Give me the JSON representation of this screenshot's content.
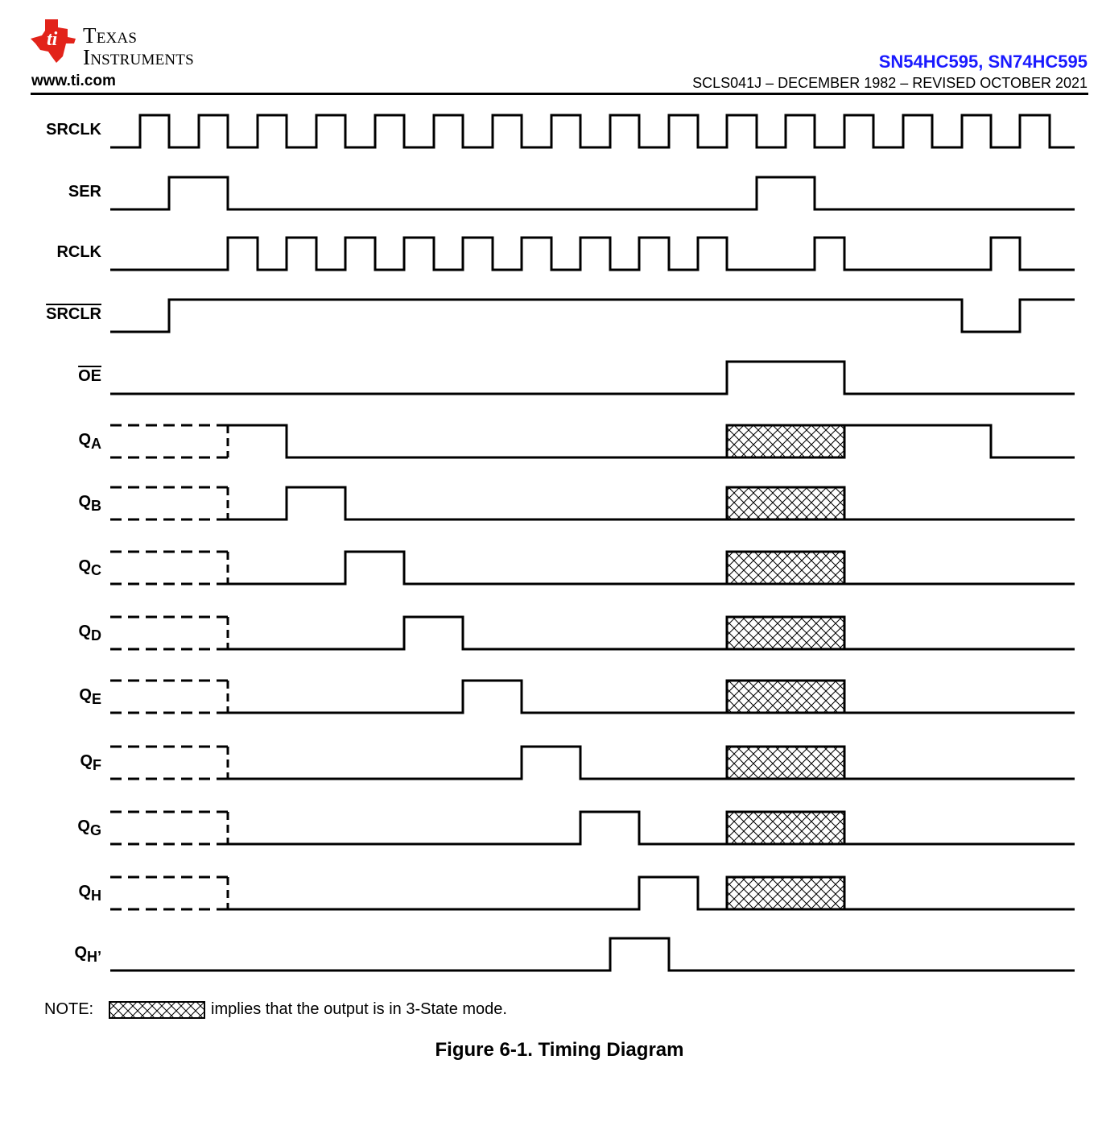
{
  "header": {
    "brand_line1": "Texas",
    "brand_line2": "Instruments",
    "website": "www.ti.com",
    "part_numbers": "SN54HC595, SN74HC595",
    "document_id": "SCLS041J – DECEMBER 1982 – REVISED OCTOBER 2021",
    "accent_color": "#1a1aff",
    "logo_color": "#e2231a"
  },
  "signals": [
    {
      "label": "SRCLK",
      "sub": ""
    },
    {
      "label": "SER",
      "sub": ""
    },
    {
      "label": "RCLK",
      "sub": ""
    },
    {
      "label": "SRCLR",
      "sub": "",
      "overbar": true
    },
    {
      "label": "OE",
      "sub": "",
      "overbar": true
    },
    {
      "label": "Q",
      "sub": "A"
    },
    {
      "label": "Q",
      "sub": "B"
    },
    {
      "label": "Q",
      "sub": "C"
    },
    {
      "label": "Q",
      "sub": "D"
    },
    {
      "label": "Q",
      "sub": "E"
    },
    {
      "label": "Q",
      "sub": "F"
    },
    {
      "label": "Q",
      "sub": "G"
    },
    {
      "label": "Q",
      "sub": "H"
    },
    {
      "label": "Q",
      "sub": "H’"
    }
  ],
  "note": {
    "label": "NOTE:",
    "text": "implies that the output is in 3-State mode."
  },
  "figure_caption": "Figure 6-1. Timing Diagram"
}
